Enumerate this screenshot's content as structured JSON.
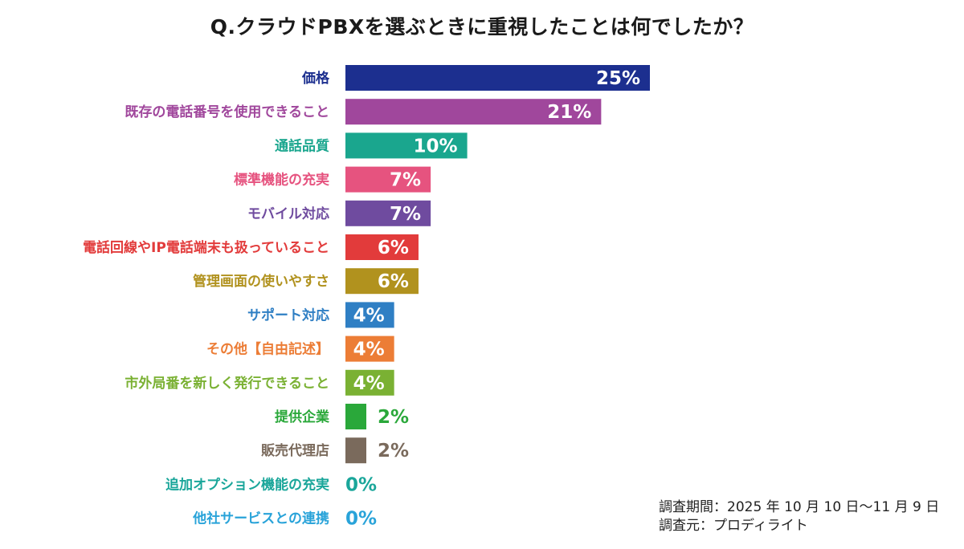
{
  "title": "Q.クラウドPBXを選ぶときに重視したことは何でしたか？",
  "chart_data": {
    "type": "bar",
    "orientation": "horizontal",
    "title": "Q.クラウドPBXを選ぶときに重視したことは何でしたか？",
    "unit": "%",
    "categories": [
      "価格",
      "既存の電話番号を使用できること",
      "通話品質",
      "標準機能の充実",
      "モバイル対応",
      "電話回線やIP電話端末も扱っていること",
      "管理画面の使いやすさ",
      "サポート対応",
      "その他【自由記述】",
      "市外局番を新しく発行できること",
      "提供企業",
      "販売代理店",
      "追加オプション機能の充実",
      "他社サービスとの連携"
    ],
    "values": [
      25,
      21,
      10,
      7,
      7,
      6,
      6,
      4,
      4,
      4,
      2,
      2,
      0,
      0
    ],
    "value_labels": [
      "25%",
      "21%",
      "10%",
      "7%",
      "7%",
      "6%",
      "6%",
      "4%",
      "4%",
      "4%",
      "2%",
      "2%",
      "0%",
      "0%"
    ],
    "colors": [
      "#1c2f8f",
      "#a0479c",
      "#1aa68e",
      "#e6537f",
      "#6f4b9f",
      "#e23b3b",
      "#b1921e",
      "#2f7fc4",
      "#ec7d36",
      "#7ab133",
      "#2aa83a",
      "#7a6a5c",
      "#1aa69a",
      "#29a3d9"
    ],
    "xlim": [
      0,
      25
    ],
    "grid": false,
    "legend": "none"
  },
  "footer": {
    "period": "調査期間：2025 年 10 月 10 日〜11 月 9 日",
    "source": "調査元：プロディライト"
  }
}
